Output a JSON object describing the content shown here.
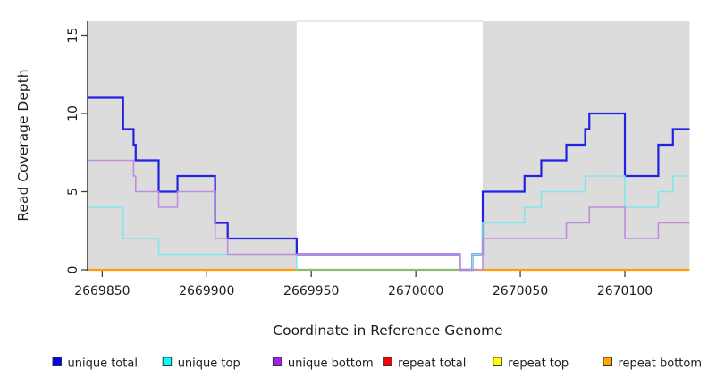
{
  "chart_data": {
    "type": "line",
    "subtype": "step-coverage-plot",
    "title": "",
    "xlabel": "Coordinate in Reference Genome",
    "ylabel": "Read Coverage Depth",
    "xlim": [
      2669843,
      2670131
    ],
    "ylim": [
      0,
      16
    ],
    "x_ticks": [
      2669850,
      2669900,
      2669950,
      2670000,
      2670050,
      2670100
    ],
    "y_ticks": [
      0,
      5,
      10,
      15
    ],
    "grid": false,
    "legend_position": "bottom",
    "panel_background": "#ffffff",
    "shaded_regions": {
      "color": "#dcdcdc",
      "x_ranges": [
        [
          2669843,
          2669943
        ],
        [
          2670032,
          2670131
        ]
      ]
    },
    "top_border_segment": {
      "x_range": [
        2669943,
        2670032
      ],
      "color": "#4d4d4d"
    },
    "series": [
      {
        "name": "unique total",
        "legend_color": "#0000ff",
        "line_color": "#2222e0",
        "line_width": 2.2,
        "x_end": 2670131,
        "steps": [
          [
            2669843,
            11
          ],
          [
            2669860,
            9
          ],
          [
            2669865,
            8
          ],
          [
            2669866,
            7
          ],
          [
            2669877,
            5
          ],
          [
            2669886,
            6
          ],
          [
            2669904,
            3
          ],
          [
            2669910,
            2
          ],
          [
            2669943,
            1
          ],
          [
            2670021,
            0
          ],
          [
            2670027,
            1
          ],
          [
            2670032,
            5
          ],
          [
            2670052,
            6
          ],
          [
            2670060,
            7
          ],
          [
            2670072,
            8
          ],
          [
            2670081,
            9
          ],
          [
            2670083,
            10
          ],
          [
            2670100,
            6
          ],
          [
            2670116,
            8
          ],
          [
            2670123,
            9
          ]
        ]
      },
      {
        "name": "unique top",
        "legend_color": "#00ffff",
        "line_color": "#82e6ea",
        "line_width": 1.6,
        "x_end": 2670131,
        "steps": [
          [
            2669843,
            4
          ],
          [
            2669860,
            2
          ],
          [
            2669877,
            1
          ],
          [
            2669943,
            0
          ],
          [
            2670027,
            1
          ],
          [
            2670032,
            3
          ],
          [
            2670052,
            4
          ],
          [
            2670060,
            5
          ],
          [
            2670081,
            6
          ],
          [
            2670100,
            4
          ],
          [
            2670116,
            5
          ],
          [
            2670123,
            6
          ]
        ]
      },
      {
        "name": "unique bottom",
        "legend_color": "#a020f0",
        "line_color": "#c08bdf",
        "line_width": 1.6,
        "x_end": 2670131,
        "steps": [
          [
            2669843,
            7
          ],
          [
            2669865,
            6
          ],
          [
            2669866,
            5
          ],
          [
            2669877,
            4
          ],
          [
            2669886,
            5
          ],
          [
            2669904,
            2
          ],
          [
            2669910,
            1
          ],
          [
            2670021,
            0
          ],
          [
            2670032,
            2
          ],
          [
            2670072,
            3
          ],
          [
            2670083,
            4
          ],
          [
            2670100,
            2
          ],
          [
            2670116,
            3
          ]
        ]
      },
      {
        "name": "repeat total",
        "legend_color": "#ff0000",
        "line_color": "#dd2222",
        "line_width": 2,
        "x_end": 2670131,
        "steps": [
          [
            2669843,
            0
          ]
        ]
      },
      {
        "name": "repeat top",
        "legend_color": "#ffff00",
        "line_color": "#f2e63a",
        "line_width": 2,
        "x_end": 2670131,
        "steps": [
          [
            2669843,
            0
          ]
        ]
      },
      {
        "name": "repeat bottom",
        "legend_color": "#ffa500",
        "line_color": "#ff9d0c",
        "line_width": 2.2,
        "x_end": 2670131,
        "steps": [
          [
            2669843,
            0
          ]
        ]
      }
    ],
    "zero_line_overlap_segment": {
      "x_range": [
        2669943,
        2670021
      ],
      "y": 0,
      "color": "#6cbe75"
    },
    "axis_color": "#2e2e2e",
    "tick_color": "#404040"
  }
}
